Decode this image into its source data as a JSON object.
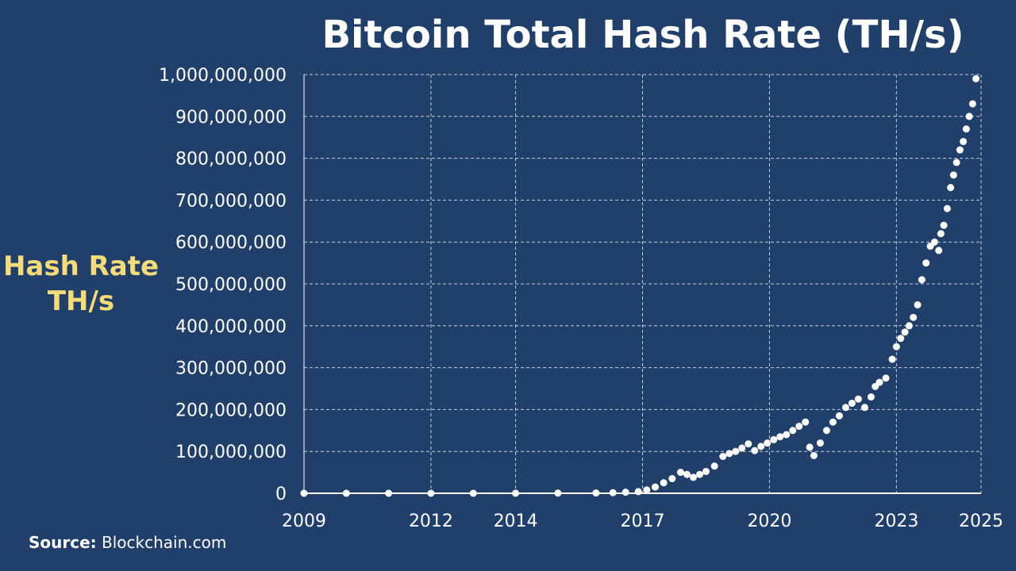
{
  "chart_data": {
    "type": "scatter",
    "title": "Bitcoin Total Hash Rate (TH/s)",
    "ylabel": "Hash Rate TH/s",
    "ylabel_lines": [
      "Hash Rate",
      "TH/s"
    ],
    "xlabel": "",
    "xlim": [
      2009,
      2025
    ],
    "ylim": [
      0,
      1000000000
    ],
    "x_ticks": [
      2009,
      2012,
      2014,
      2017,
      2020,
      2023,
      2025
    ],
    "x_tick_labels": [
      "2009",
      "2012",
      "2014",
      "2017",
      "2020",
      "2023",
      "2025"
    ],
    "y_ticks": [
      0,
      100000000,
      200000000,
      300000000,
      400000000,
      500000000,
      600000000,
      700000000,
      800000000,
      900000000,
      1000000000
    ],
    "y_tick_labels": [
      "0",
      "100,000,000",
      "200,000,000",
      "300,000,000",
      "400,000,000",
      "500,000,000",
      "600,000,000",
      "700,000,000",
      "800,000,000",
      "900,000,000",
      "1,000,000,000"
    ],
    "grid": true,
    "legend": "none",
    "marker_color": "#ffffff",
    "series": [
      {
        "x": [
          2009.0,
          2010.0,
          2011.0,
          2012.0,
          2013.0,
          2014.0,
          2015.0,
          2015.9,
          2016.3,
          2016.6,
          2016.9,
          2017.1,
          2017.3,
          2017.5,
          2017.7,
          2017.9,
          2018.05,
          2018.2,
          2018.35,
          2018.5,
          2018.7,
          2018.9,
          2019.05,
          2019.2,
          2019.35,
          2019.5,
          2019.65,
          2019.8,
          2019.95,
          2020.1,
          2020.25,
          2020.4,
          2020.55,
          2020.7,
          2020.85,
          2020.95,
          2021.05,
          2021.2,
          2021.35,
          2021.5,
          2021.65,
          2021.8,
          2021.95,
          2022.1,
          2022.25,
          2022.4,
          2022.5,
          2022.6,
          2022.75,
          2022.9,
          2023.0,
          2023.1,
          2023.2,
          2023.3,
          2023.4,
          2023.5,
          2023.6,
          2023.7,
          2023.8,
          2023.9,
          2024.0,
          2024.05,
          2024.12,
          2024.2,
          2024.28,
          2024.35,
          2024.42,
          2024.5,
          2024.58,
          2024.65,
          2024.72,
          2024.8,
          2024.88
        ],
        "y": [
          0,
          0,
          0,
          0,
          100000,
          200000,
          400000,
          800000,
          1500000,
          2500000,
          4000000,
          8000000,
          15000000,
          25000000,
          35000000,
          50000000,
          45000000,
          38000000,
          45000000,
          52000000,
          65000000,
          88000000,
          95000000,
          100000000,
          108000000,
          118000000,
          102000000,
          112000000,
          120000000,
          128000000,
          135000000,
          140000000,
          150000000,
          160000000,
          170000000,
          110000000,
          90000000,
          120000000,
          150000000,
          170000000,
          185000000,
          205000000,
          215000000,
          225000000,
          205000000,
          230000000,
          255000000,
          265000000,
          275000000,
          320000000,
          350000000,
          370000000,
          385000000,
          400000000,
          420000000,
          450000000,
          510000000,
          550000000,
          590000000,
          600000000,
          580000000,
          620000000,
          640000000,
          680000000,
          730000000,
          760000000,
          790000000,
          820000000,
          840000000,
          870000000,
          900000000,
          930000000,
          990000000
        ]
      }
    ]
  },
  "source": {
    "prefix": "Source:",
    "text": "Blockchain.com"
  }
}
